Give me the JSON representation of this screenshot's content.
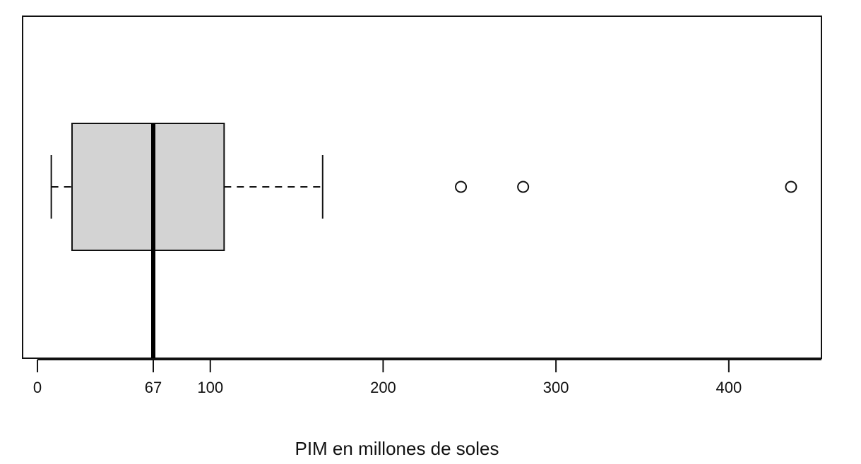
{
  "chart_data": {
    "type": "box",
    "orientation": "horizontal",
    "xlabel": "PIM en millones de soles",
    "whisker_low": 8,
    "q1": 20,
    "median": 67,
    "q3": 108,
    "whisker_high": 165,
    "outliers": [
      245,
      281,
      436
    ],
    "color": "#d3d3d3",
    "xlim": [
      -8.6,
      453.6
    ],
    "xticks": [
      0,
      67,
      100,
      200,
      300,
      400
    ]
  }
}
